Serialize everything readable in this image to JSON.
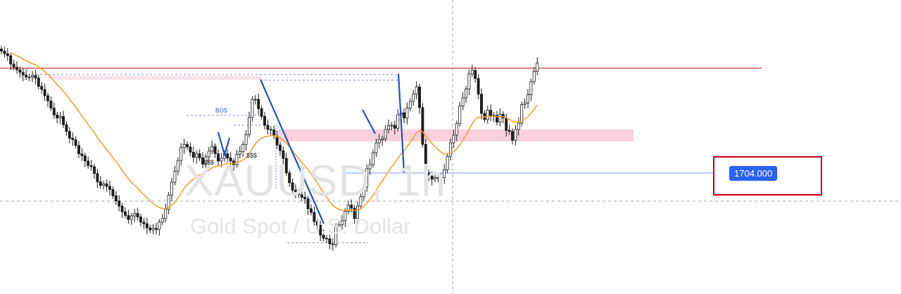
{
  "symbol_watermark": "XAUUSD, 1h",
  "description_watermark": "Gold Spot / U.S. Dollar",
  "price_label": "1704.000",
  "annotations": {
    "bos": "BOS",
    "liquidity_left": "$$$",
    "liquidity_right": "$$$"
  },
  "colors": {
    "bull": "#222222",
    "bear": "#222222",
    "ma": "#f0a030",
    "resistance": "#e53935",
    "zone": "#f8c8d6",
    "swing": "#2254c8",
    "target": "#7b9bf0",
    "highlight": "#d0021b",
    "price_tag": "#2962ff"
  },
  "chart_data": {
    "type": "candlestick",
    "title": "XAUUSD, 1h",
    "subtitle": "Gold Spot / U.S. Dollar",
    "xlabel": "",
    "ylabel": "",
    "ylim": [
      1686,
      1740
    ],
    "grid": false,
    "legend": "none",
    "close_series": [
      1731.5,
      1731.0,
      1730.6,
      1729.0,
      1728.4,
      1727.9,
      1727.4,
      1726.9,
      1726.5,
      1726.5,
      1726.8,
      1726.3,
      1724.7,
      1724.1,
      1722.9,
      1721.9,
      1720.5,
      1719.2,
      1718.6,
      1718.9,
      1717.3,
      1716.0,
      1714.7,
      1714.4,
      1713.3,
      1711.7,
      1711.3,
      1710.3,
      1709.4,
      1709.2,
      1707.9,
      1706.3,
      1705.6,
      1705.9,
      1705.4,
      1704.8,
      1703.6,
      1702.6,
      1701.6,
      1700.5,
      1699.8,
      1699.0,
      1699.7,
      1700.2,
      1699.5,
      1698.5,
      1698.2,
      1697.4,
      1697.0,
      1697.3,
      1697.1,
      1698.5,
      1699.2,
      1701.0,
      1703.7,
      1706.2,
      1708.3,
      1710.4,
      1712.9,
      1713.5,
      1713.0,
      1712.0,
      1711.0,
      1711.7,
      1710.9,
      1709.7,
      1711.1,
      1712.2,
      1713.1,
      1711.7,
      1710.3,
      1710.8,
      1711.7,
      1710.9,
      1710.3,
      1709.6,
      1711.6,
      1712.1,
      1713.5,
      1715.4,
      1718.7,
      1722.2,
      1722.2,
      1720.4,
      1718.9,
      1717.2,
      1716.4,
      1716.3,
      1715.1,
      1713.4,
      1712.3,
      1710.8,
      1708.0,
      1706.1,
      1704.7,
      1704.3,
      1703.8,
      1703.3,
      1703.0,
      1701.1,
      1700.4,
      1698.6,
      1697.9,
      1696.0,
      1695.4,
      1695.3,
      1694.3,
      1694.2,
      1697.7,
      1698.0,
      1698.8,
      1700.6,
      1701.8,
      1701.2,
      1699.2,
      1701.6,
      1703.4,
      1705.3,
      1708.8,
      1709.6,
      1711.9,
      1713.8,
      1714.4,
      1714.6,
      1716.4,
      1717.2,
      1717.2,
      1716.6,
      1719.2,
      1719.6,
      1718.6,
      1720.5,
      1721.8,
      1723.2,
      1724.6,
      1720.6,
      1713.5,
      1708.0,
      1707.4,
      1706.8,
      1707.1,
      1707.0,
      1707.1,
      1708.6,
      1711.2,
      1713.8,
      1715.3,
      1717.5,
      1720.9,
      1722.5,
      1724.2,
      1727.1,
      1727.8,
      1726.2,
      1723.2,
      1719.5,
      1718.3,
      1720.1,
      1719.0,
      1719.1,
      1717.8,
      1719.3,
      1718.6,
      1716.2,
      1716.0,
      1714.3,
      1716.4,
      1717.6,
      1721.2,
      1721.5,
      1723.1,
      1725.6,
      1727.6,
      1729.2
    ]
  }
}
